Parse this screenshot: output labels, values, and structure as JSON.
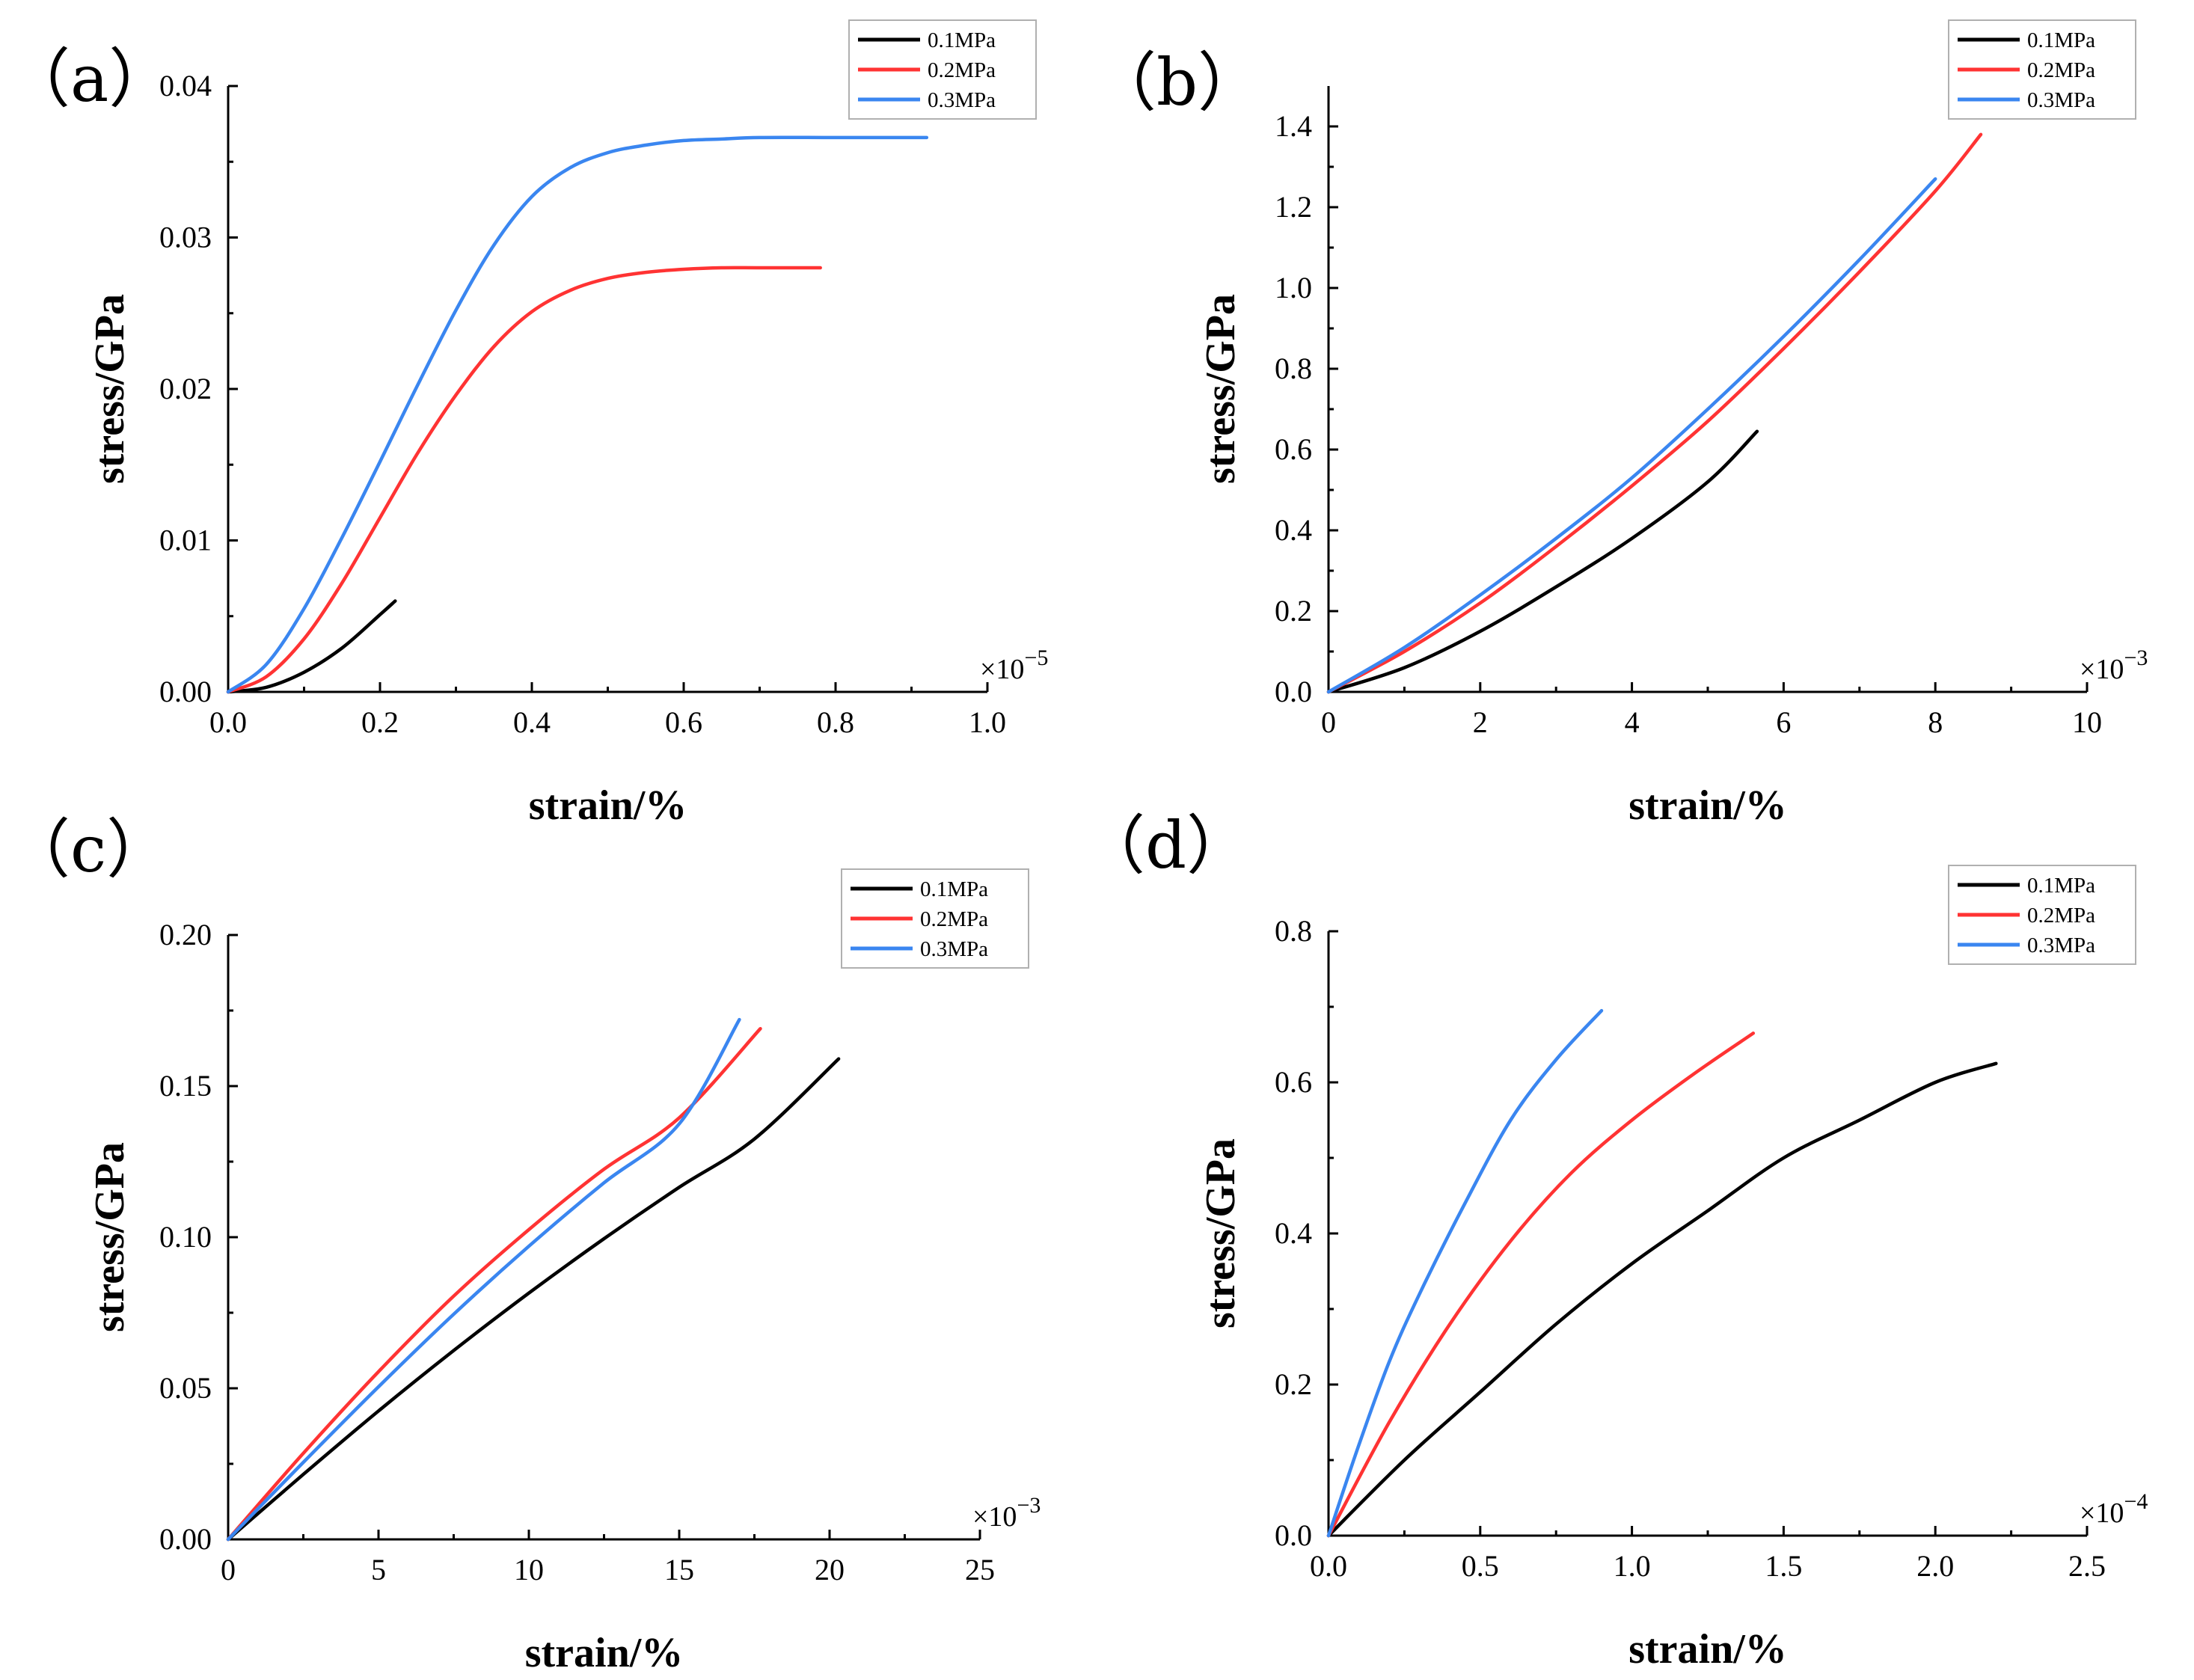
{
  "colors": {
    "0.1MPa": "#000000",
    "0.2MPa": "#ff3333",
    "0.3MPa": "#3a86f0"
  },
  "chart_data": [
    {
      "type": "line",
      "panel_label": "（a）",
      "xlabel": "strain/%",
      "ylabel": "stress/GPa",
      "x_multiplier": "×10",
      "x_exponent": "−5",
      "xlim": [
        0.0,
        1.0
      ],
      "ylim": [
        0.0,
        0.04
      ],
      "xticks": [
        0.0,
        0.2,
        0.4,
        0.6,
        0.8,
        1.0
      ],
      "xtick_labels": [
        "0.0",
        "0.2",
        "0.4",
        "0.6",
        "0.8",
        "1.0"
      ],
      "yticks": [
        0.0,
        0.01,
        0.02,
        0.03,
        0.04
      ],
      "ytick_labels": [
        "0.00",
        "0.01",
        "0.02",
        "0.03",
        "0.04"
      ],
      "legend": [
        "0.1MPa",
        "0.2MPa",
        "0.3MPa"
      ],
      "legend_position": "top-right",
      "series": [
        {
          "name": "0.1MPa",
          "x": [
            0,
            0.05,
            0.1,
            0.15,
            0.2,
            0.22
          ],
          "y": [
            0,
            0.0003,
            0.0013,
            0.0029,
            0.0051,
            0.006
          ]
        },
        {
          "name": "0.2MPa",
          "x": [
            0,
            0.05,
            0.1,
            0.15,
            0.2,
            0.25,
            0.3,
            0.35,
            0.4,
            0.45,
            0.5,
            0.55,
            0.6,
            0.65,
            0.7,
            0.78
          ],
          "y": [
            0,
            0.001,
            0.0035,
            0.0072,
            0.0115,
            0.0158,
            0.0196,
            0.0228,
            0.0251,
            0.0265,
            0.0273,
            0.0277,
            0.0279,
            0.028,
            0.028,
            0.028
          ]
        },
        {
          "name": "0.3MPa",
          "x": [
            0,
            0.05,
            0.1,
            0.15,
            0.2,
            0.25,
            0.3,
            0.35,
            0.4,
            0.45,
            0.5,
            0.55,
            0.6,
            0.65,
            0.7,
            0.8,
            0.92
          ],
          "y": [
            0,
            0.0018,
            0.0055,
            0.0102,
            0.0152,
            0.0203,
            0.0252,
            0.0295,
            0.0327,
            0.0346,
            0.0356,
            0.0361,
            0.0364,
            0.0365,
            0.0366,
            0.0366,
            0.0366
          ]
        }
      ]
    },
    {
      "type": "line",
      "panel_label": "（b）",
      "xlabel": "strain/%",
      "ylabel": "stress/GPa",
      "x_multiplier": "×10",
      "x_exponent": "−3",
      "xlim": [
        0,
        10
      ],
      "ylim": [
        0.0,
        1.5
      ],
      "xticks": [
        0,
        2,
        4,
        6,
        8,
        10
      ],
      "xtick_labels": [
        "0",
        "2",
        "4",
        "6",
        "8",
        "10"
      ],
      "yticks": [
        0.0,
        0.2,
        0.4,
        0.6,
        0.8,
        1.0,
        1.2,
        1.4
      ],
      "ytick_labels": [
        "0.0",
        "0.2",
        "0.4",
        "0.6",
        "0.8",
        "1.0",
        "1.2",
        "1.4"
      ],
      "legend": [
        "0.1MPa",
        "0.2MPa",
        "0.3MPa"
      ],
      "legend_position": "top-right",
      "series": [
        {
          "name": "0.1MPa",
          "x": [
            0,
            1,
            2,
            3,
            4,
            5,
            5.65
          ],
          "y": [
            0,
            0.06,
            0.15,
            0.26,
            0.38,
            0.52,
            0.645
          ]
        },
        {
          "name": "0.2MPa",
          "x": [
            0,
            1,
            2,
            3,
            4,
            5,
            6,
            7,
            8,
            8.6
          ],
          "y": [
            0,
            0.1,
            0.22,
            0.36,
            0.51,
            0.67,
            0.85,
            1.04,
            1.24,
            1.38
          ]
        },
        {
          "name": "0.3MPa",
          "x": [
            0,
            1,
            2,
            3,
            4,
            5,
            6,
            7,
            8
          ],
          "y": [
            0,
            0.11,
            0.24,
            0.38,
            0.53,
            0.7,
            0.88,
            1.07,
            1.27
          ]
        }
      ]
    },
    {
      "type": "line",
      "panel_label": "（c）",
      "xlabel": "strain/%",
      "ylabel": "stress/GPa",
      "x_multiplier": "×10",
      "x_exponent": "−3",
      "xlim": [
        0,
        25
      ],
      "ylim": [
        0.0,
        0.2
      ],
      "xticks": [
        0,
        5,
        10,
        15,
        20,
        25
      ],
      "xtick_labels": [
        "0",
        "5",
        "10",
        "15",
        "20",
        "25"
      ],
      "yticks": [
        0.0,
        0.05,
        0.1,
        0.15,
        0.2
      ],
      "ytick_labels": [
        "0.00",
        "0.05",
        "0.10",
        "0.15",
        "0.20"
      ],
      "legend": [
        "0.1MPa",
        "0.2MPa",
        "0.3MPa"
      ],
      "legend_position": "top-right",
      "series": [
        {
          "name": "0.1MPa",
          "x": [
            0,
            2.5,
            5,
            7.5,
            10,
            12.5,
            15,
            17.5,
            20.3
          ],
          "y": [
            0,
            0.0215,
            0.0425,
            0.0625,
            0.0815,
            0.0995,
            0.1165,
            0.1325,
            0.159
          ]
        },
        {
          "name": "0.2MPa",
          "x": [
            0,
            2.5,
            5,
            7.5,
            10,
            12.5,
            15,
            17.7
          ],
          "y": [
            0,
            0.0285,
            0.0555,
            0.0805,
            0.1025,
            0.1225,
            0.1395,
            0.169
          ]
        },
        {
          "name": "0.3MPa",
          "x": [
            0,
            2.5,
            5,
            7.5,
            10,
            12.5,
            15,
            17.0
          ],
          "y": [
            0,
            0.0255,
            0.0505,
            0.0745,
            0.097,
            0.118,
            0.1375,
            0.172
          ]
        }
      ]
    },
    {
      "type": "line",
      "panel_label": "（d）",
      "xlabel": "strain/%",
      "ylabel": "stress/GPa",
      "x_multiplier": "×10",
      "x_exponent": "−4",
      "xlim": [
        0.0,
        2.5
      ],
      "ylim": [
        0.0,
        0.8
      ],
      "xticks": [
        0.0,
        0.5,
        1.0,
        1.5,
        2.0,
        2.5
      ],
      "xtick_labels": [
        "0.0",
        "0.5",
        "1.0",
        "1.5",
        "2.0",
        "2.5"
      ],
      "yticks": [
        0.0,
        0.2,
        0.4,
        0.6,
        0.8
      ],
      "ytick_labels": [
        "0.0",
        "0.2",
        "0.4",
        "0.6",
        "0.8"
      ],
      "legend": [
        "0.1MPa",
        "0.2MPa",
        "0.3MPa"
      ],
      "legend_position": "top-right",
      "series": [
        {
          "name": "0.1MPa",
          "x": [
            0,
            0.25,
            0.5,
            0.75,
            1.0,
            1.25,
            1.5,
            1.75,
            2.0,
            2.2
          ],
          "y": [
            0,
            0.1,
            0.19,
            0.28,
            0.36,
            0.43,
            0.5,
            0.55,
            0.6,
            0.625
          ]
        },
        {
          "name": "0.2MPa",
          "x": [
            0,
            0.2,
            0.4,
            0.6,
            0.8,
            1.0,
            1.2,
            1.4
          ],
          "y": [
            0,
            0.15,
            0.28,
            0.39,
            0.48,
            0.55,
            0.61,
            0.665
          ]
        },
        {
          "name": "0.3MPa",
          "x": [
            0,
            0.1,
            0.2,
            0.3,
            0.45,
            0.6,
            0.75,
            0.9
          ],
          "y": [
            0,
            0.12,
            0.23,
            0.32,
            0.44,
            0.55,
            0.63,
            0.695
          ]
        }
      ]
    }
  ]
}
